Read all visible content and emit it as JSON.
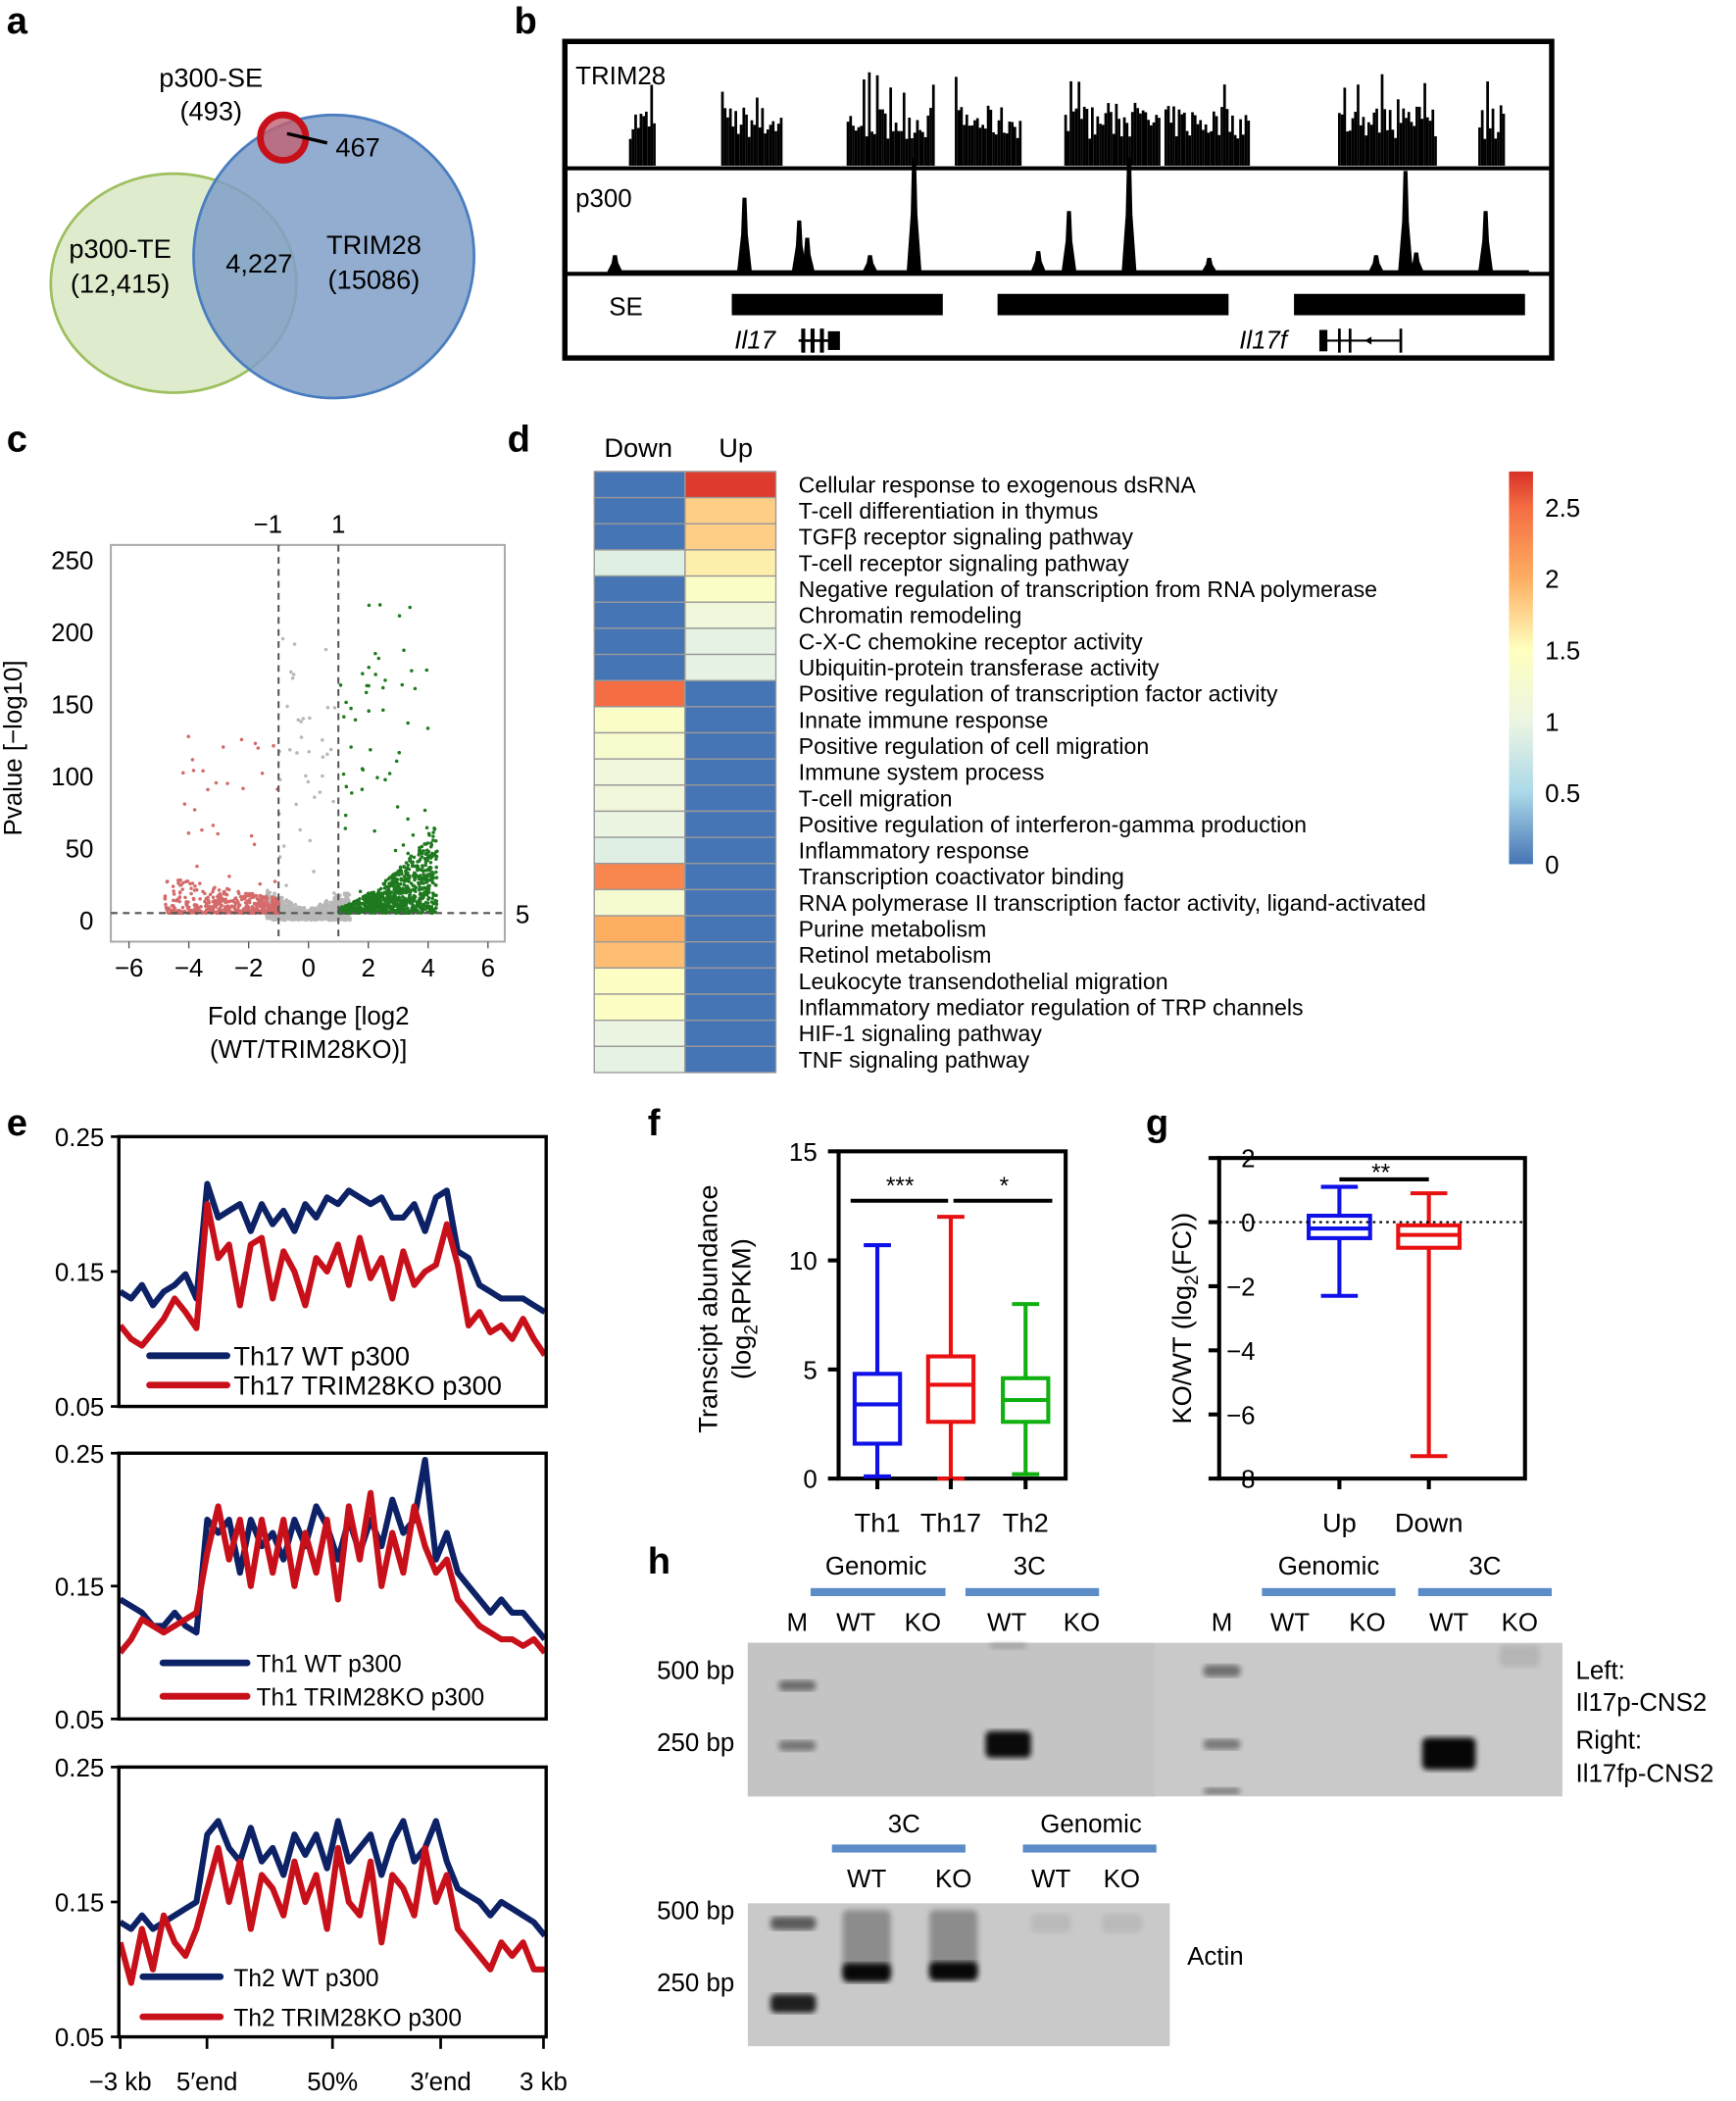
{
  "panel_labels": [
    "a",
    "b",
    "c",
    "d",
    "e",
    "f",
    "g",
    "h"
  ],
  "venn": {
    "se_label": "p300-SE",
    "se_count": "(493)",
    "overlap_se": "467",
    "te_label": "p300-TE",
    "te_count": "(12,415)",
    "overlap_te": "4,227",
    "trim_label": "TRIM28",
    "trim_count": "(15086)",
    "colors": {
      "te": "#d9e8c4",
      "trim": "#7f9fc8",
      "se": "#c8101a",
      "te_text": "#2a8a2a",
      "trim_text": "#1a1a8a",
      "se_text": "#8b1010"
    }
  },
  "tracks": {
    "rows": [
      "TRIM28",
      "p300",
      "SE"
    ],
    "genes": [
      "Il17",
      "Il17f"
    ]
  },
  "chart_data": [
    {
      "panel": "c",
      "type": "scatter",
      "xlabel_line1": "Fold change [log2",
      "xlabel_line2": "(WT/TRIM28KO)]",
      "ylabel": "Pvalue [−log10]",
      "xlim": [
        -6.5,
        6.5
      ],
      "ylim": [
        -15,
        260
      ],
      "xticks": [
        "−6",
        "−4",
        "−2",
        "0",
        "2",
        "4",
        "6"
      ],
      "yticks": [
        "0",
        "50",
        "100",
        "150",
        "200",
        "250"
      ],
      "thresholds": {
        "x": [
          "−1",
          "1"
        ],
        "y": "5"
      },
      "series_colors": {
        "down": "#d46a6a",
        "ns": "#b8b8b8",
        "up": "#1f7a1f"
      }
    },
    {
      "panel": "e",
      "type": "heatmap",
      "columns": [
        "Down",
        "Up"
      ],
      "rows": [
        "Cellular response to exogenous dsRNA",
        "T-cell differentiation in thymus",
        "TGFβ receptor signaling pathway",
        "T-cell receptor signaling pathway",
        "Negative regulation of transcription from RNA polymerase",
        "Chromatin remodeling",
        "C-X-C chemokine receptor activity",
        "Ubiquitin-protein transferase activity",
        "Positive regulation of transcription factor activity",
        "Innate immune response",
        "Positive regulation of cell migration",
        "Immune system process",
        "T-cell migration",
        "Positive regulation of interferon-gamma production",
        "Inflammatory response",
        "Transcription coactivator binding",
        "RNA polymerase II transcription factor activity, ligand-activated",
        "Purine metabolism",
        "Retinol metabolism",
        "Leukocyte transendothelial migration",
        "Inflammatory mediator regulation of TRP channels",
        "HIF-1 signaling pathway",
        "TNF signaling pathway"
      ],
      "down": [
        0,
        0,
        0,
        0.9,
        0,
        0,
        0,
        0,
        2.5,
        1.4,
        1.3,
        1.1,
        1.1,
        1.0,
        0.9,
        2.3,
        1.25,
        2.0,
        1.9,
        1.45,
        1.45,
        1.0,
        0.95
      ],
      "up": [
        2.7,
        1.8,
        1.8,
        1.6,
        1.4,
        1.1,
        0.95,
        0.95,
        0,
        0,
        0,
        0,
        0,
        0,
        0,
        0,
        0,
        0,
        0,
        0,
        0,
        0,
        0
      ],
      "colorbar": {
        "range": [
          0,
          2.75
        ],
        "ticks": [
          "2.5",
          "2",
          "1.5",
          "1",
          "0.5",
          "0"
        ]
      }
    },
    {
      "panel": "d",
      "type": "line",
      "xticks": [
        "−3 kb",
        "5′end",
        "50%",
        "3′end",
        "3 kb"
      ],
      "yticks": [
        "0.25",
        "0.15",
        "0.05"
      ],
      "ylim": [
        0.05,
        0.25
      ],
      "plots": [
        {
          "series": [
            {
              "name": "Th17 WT p300",
              "color": "#0d2266",
              "values": [
                0.135,
                0.13,
                0.14,
                0.125,
                0.135,
                0.14,
                0.148,
                0.13,
                0.215,
                0.19,
                0.195,
                0.2,
                0.18,
                0.2,
                0.185,
                0.195,
                0.18,
                0.2,
                0.19,
                0.205,
                0.2,
                0.21,
                0.205,
                0.2,
                0.205,
                0.19,
                0.19,
                0.2,
                0.18,
                0.205,
                0.21,
                0.165,
                0.16,
                0.14,
                0.135,
                0.13,
                0.13,
                0.13,
                0.125,
                0.12
              ]
            },
            {
              "name": "Th17 TRIM28KO p300",
              "color": "#c8101a",
              "values": [
                0.11,
                0.1,
                0.095,
                0.105,
                0.115,
                0.13,
                0.12,
                0.108,
                0.2,
                0.16,
                0.17,
                0.125,
                0.17,
                0.175,
                0.13,
                0.165,
                0.15,
                0.125,
                0.16,
                0.15,
                0.17,
                0.14,
                0.175,
                0.145,
                0.16,
                0.13,
                0.165,
                0.14,
                0.15,
                0.155,
                0.185,
                0.155,
                0.11,
                0.12,
                0.105,
                0.11,
                0.1,
                0.115,
                0.1,
                0.088
              ]
            }
          ]
        },
        {
          "series": [
            {
              "name": "Th1 WT p300",
              "color": "#0d2266",
              "values": [
                0.14,
                0.135,
                0.13,
                0.12,
                0.12,
                0.13,
                0.12,
                0.115,
                0.2,
                0.19,
                0.2,
                0.16,
                0.2,
                0.18,
                0.19,
                0.17,
                0.2,
                0.18,
                0.21,
                0.195,
                0.17,
                0.2,
                0.175,
                0.2,
                0.18,
                0.215,
                0.19,
                0.2,
                0.245,
                0.17,
                0.19,
                0.16,
                0.15,
                0.14,
                0.13,
                0.14,
                0.13,
                0.13,
                0.12,
                0.11
              ]
            },
            {
              "name": "Th1 TRIM28KO p300",
              "color": "#c8101a",
              "values": [
                0.1,
                0.11,
                0.125,
                0.12,
                0.115,
                0.12,
                0.125,
                0.13,
                0.175,
                0.21,
                0.17,
                0.2,
                0.15,
                0.2,
                0.16,
                0.2,
                0.15,
                0.19,
                0.16,
                0.2,
                0.14,
                0.21,
                0.17,
                0.22,
                0.15,
                0.19,
                0.16,
                0.21,
                0.18,
                0.16,
                0.17,
                0.14,
                0.13,
                0.12,
                0.115,
                0.11,
                0.11,
                0.105,
                0.11,
                0.1
              ]
            }
          ]
        },
        {
          "series": [
            {
              "name": "Th2 WT p300",
              "color": "#0d2266",
              "values": [
                0.135,
                0.13,
                0.14,
                0.13,
                0.135,
                0.14,
                0.145,
                0.15,
                0.2,
                0.21,
                0.19,
                0.18,
                0.205,
                0.18,
                0.19,
                0.17,
                0.2,
                0.185,
                0.2,
                0.175,
                0.21,
                0.18,
                0.19,
                0.2,
                0.17,
                0.195,
                0.21,
                0.18,
                0.19,
                0.21,
                0.18,
                0.16,
                0.155,
                0.15,
                0.14,
                0.15,
                0.145,
                0.14,
                0.135,
                0.125
              ]
            },
            {
              "name": "Th2 TRIM28KO p300",
              "color": "#c8101a",
              "values": [
                0.12,
                0.09,
                0.13,
                0.1,
                0.14,
                0.12,
                0.11,
                0.13,
                0.16,
                0.19,
                0.15,
                0.18,
                0.13,
                0.17,
                0.16,
                0.14,
                0.18,
                0.15,
                0.17,
                0.13,
                0.19,
                0.15,
                0.14,
                0.18,
                0.12,
                0.17,
                0.16,
                0.14,
                0.19,
                0.15,
                0.17,
                0.13,
                0.12,
                0.11,
                0.1,
                0.12,
                0.11,
                0.12,
                0.1,
                0.1
              ]
            }
          ]
        }
      ]
    },
    {
      "panel": "f",
      "type": "box",
      "ylabel_parts": [
        "Transcipt abundance",
        "(log",
        "2",
        "RPKM)"
      ],
      "ylim": [
        0,
        15
      ],
      "yticks": [
        "0",
        "5",
        "10",
        "15"
      ],
      "categories": [
        "Th1",
        "Th17",
        "Th2"
      ],
      "colors": [
        "#1010e8",
        "#e81010",
        "#10b010"
      ],
      "boxes": [
        {
          "min": 0.1,
          "q1": 1.6,
          "median": 3.4,
          "q3": 4.8,
          "max": 10.7
        },
        {
          "min": 0.0,
          "q1": 2.6,
          "median": 4.3,
          "q3": 5.6,
          "max": 12.0
        },
        {
          "min": 0.2,
          "q1": 2.6,
          "median": 3.6,
          "q3": 4.6,
          "max": 8.0
        }
      ],
      "significance": [
        "***",
        "*"
      ]
    },
    {
      "panel": "g",
      "type": "box",
      "ylabel_parts": [
        "KO/WT (log",
        "2",
        "(FC))"
      ],
      "ylim": [
        -8,
        2
      ],
      "yticks": [
        "2",
        "0",
        "−2",
        "−4",
        "−6",
        "−8"
      ],
      "categories": [
        "Up",
        "Down"
      ],
      "colors": [
        "#1010e8",
        "#e81010"
      ],
      "boxes": [
        {
          "min": -2.3,
          "q1": -0.5,
          "median": -0.2,
          "q3": 0.2,
          "max": 1.1
        },
        {
          "min": -7.3,
          "q1": -0.8,
          "median": -0.4,
          "q3": -0.1,
          "max": 0.9
        }
      ],
      "significance": [
        "**"
      ]
    }
  ],
  "gel": {
    "top": {
      "groups": [
        "Genomic",
        "3C",
        "Genomic",
        "3C"
      ],
      "lanes": [
        "M",
        "WT",
        "KO",
        "WT",
        "KO",
        "M",
        "WT",
        "KO",
        "WT",
        "KO"
      ],
      "sizes": [
        "500 bp",
        "250 bp"
      ],
      "side_labels": [
        "Left:",
        "Il17p-CNS2",
        "Right:",
        "Il17fp-CNS2"
      ]
    },
    "bottom": {
      "groups": [
        "3C",
        "Genomic"
      ],
      "lanes": [
        "WT",
        "KO",
        "WT",
        "KO"
      ],
      "sizes": [
        "500 bp",
        "250 bp"
      ],
      "side_label": "Actin"
    },
    "lane_color": "#1a1ae0",
    "group_bar_color": "#5b8cc8"
  }
}
